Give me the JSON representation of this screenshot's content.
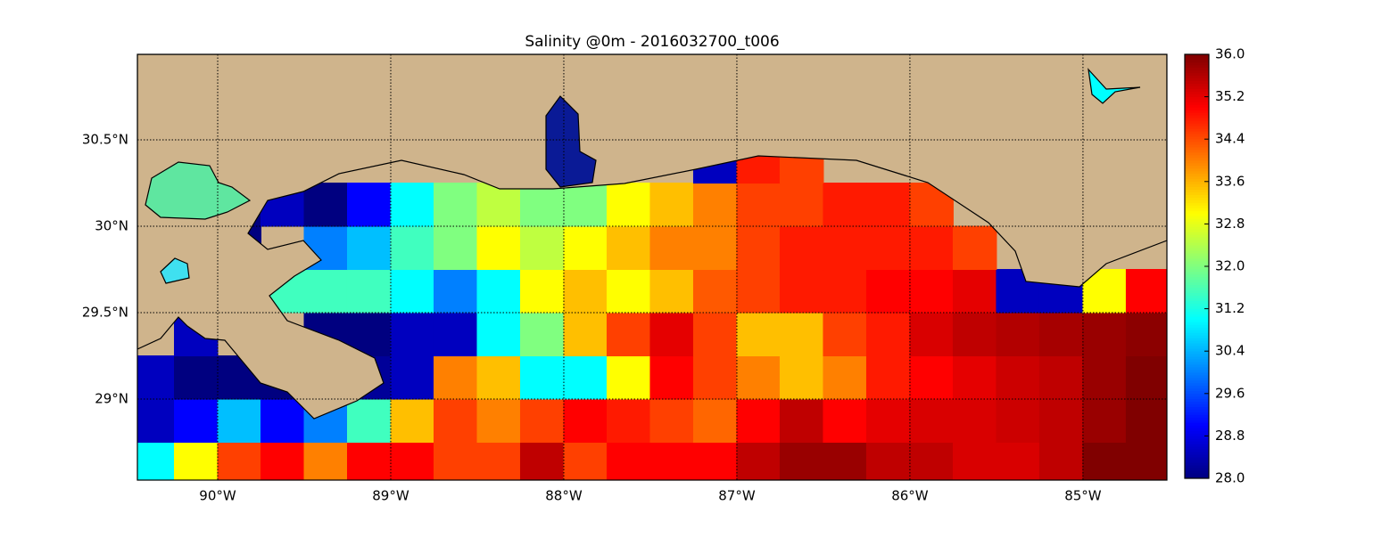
{
  "chart_data": {
    "type": "heatmap",
    "title": "Salinity @0m - 2016032700_t006",
    "colormap": "jet",
    "land_color": "#cfb48c",
    "grid": true,
    "xlim": [
      -90.464,
      -84.515
    ],
    "ylim": [
      28.531,
      30.995
    ],
    "xticks": [
      {
        "value": -90,
        "label": "90°W"
      },
      {
        "value": -89,
        "label": "89°W"
      },
      {
        "value": -88,
        "label": "88°W"
      },
      {
        "value": -87,
        "label": "87°W"
      },
      {
        "value": -86,
        "label": "86°W"
      },
      {
        "value": -85,
        "label": "85°W"
      }
    ],
    "yticks": [
      {
        "value": 29,
        "label": "29°N"
      },
      {
        "value": 29.5,
        "label": "29.5°N"
      },
      {
        "value": 30,
        "label": "30°N"
      },
      {
        "value": 30.5,
        "label": "30.5°N"
      }
    ],
    "clim": [
      28,
      36
    ],
    "cticks": [
      {
        "value": 28,
        "label": "28.0"
      },
      {
        "value": 28.8,
        "label": "28.8"
      },
      {
        "value": 29.6,
        "label": "29.6"
      },
      {
        "value": 30.4,
        "label": "30.4"
      },
      {
        "value": 31.2,
        "label": "31.2"
      },
      {
        "value": 32,
        "label": "32.0"
      },
      {
        "value": 32.8,
        "label": "32.8"
      },
      {
        "value": 33.6,
        "label": "33.6"
      },
      {
        "value": 34.4,
        "label": "34.4"
      },
      {
        "value": 35.2,
        "label": "35.2"
      },
      {
        "value": 36,
        "label": "36.0"
      }
    ],
    "x": [
      -90.375,
      -90.125,
      -89.875,
      -89.625,
      -89.375,
      -89.125,
      -88.875,
      -88.625,
      -88.375,
      -88.125,
      -87.875,
      -87.625,
      -87.375,
      -87.125,
      -86.875,
      -86.625,
      -86.375,
      -86.125,
      -85.875,
      -85.625,
      -85.375,
      -85.125,
      -84.875,
      -84.625
    ],
    "y": [
      28.625,
      28.875,
      29.125,
      29.375,
      29.625,
      29.875,
      30.125,
      30.375,
      30.625,
      30.875
    ],
    "values": [
      [
        31,
        33,
        34.5,
        35,
        34,
        35,
        35,
        34.5,
        34.5,
        35.5,
        34.5,
        35,
        35,
        35,
        35.5,
        35.8,
        35.8,
        35.5,
        35.5,
        35.3,
        35.3,
        35.5,
        36,
        36
      ],
      [
        28.5,
        29,
        30.5,
        29,
        30,
        31.5,
        33.5,
        34.5,
        34,
        34.5,
        35,
        34.8,
        34.5,
        34.2,
        35,
        35.5,
        35,
        35.2,
        35.3,
        35.3,
        35.4,
        35.5,
        35.8,
        36
      ],
      [
        28.5,
        28,
        28,
        28,
        28,
        28.2,
        28.5,
        34,
        33.5,
        31,
        31,
        33,
        35,
        34.5,
        34,
        33.5,
        34,
        34.8,
        35,
        35.2,
        35.4,
        35.5,
        35.8,
        36
      ],
      [
        null,
        28.5,
        null,
        null,
        28,
        28,
        28.5,
        28.5,
        31,
        32,
        33.5,
        34.5,
        35.2,
        34.5,
        33.5,
        33.5,
        34.5,
        34.8,
        35.3,
        35.5,
        35.6,
        35.7,
        35.8,
        35.9
      ],
      [
        null,
        null,
        null,
        31.5,
        31.5,
        31.5,
        31,
        30,
        31,
        33,
        33.5,
        33,
        33.5,
        34.3,
        34.5,
        34.8,
        34.8,
        35,
        35,
        35.2,
        28.5,
        28.5,
        33,
        35
      ],
      [
        null,
        null,
        28,
        null,
        30,
        30.5,
        31.5,
        32,
        33,
        32.5,
        33,
        33.5,
        34,
        34,
        34.5,
        34.8,
        34.8,
        34.8,
        34.8,
        34.5,
        null,
        null,
        null,
        null
      ],
      [
        null,
        31.5,
        28,
        28.5,
        28,
        29,
        31,
        32,
        32.5,
        32,
        32,
        33,
        33.5,
        34,
        34.5,
        34.5,
        34.8,
        34.8,
        34.5,
        null,
        null,
        null,
        null,
        null
      ],
      [
        null,
        null,
        null,
        null,
        null,
        null,
        null,
        null,
        null,
        28,
        null,
        null,
        null,
        28.5,
        34.8,
        34.5,
        null,
        null,
        null,
        null,
        null,
        null,
        null,
        null
      ],
      [
        null,
        null,
        null,
        null,
        null,
        null,
        null,
        null,
        null,
        28,
        null,
        null,
        null,
        null,
        null,
        null,
        null,
        null,
        null,
        null,
        null,
        null,
        null,
        null
      ],
      [
        null,
        null,
        null,
        null,
        null,
        null,
        null,
        null,
        null,
        null,
        null,
        null,
        null,
        null,
        null,
        null,
        null,
        null,
        null,
        null,
        null,
        null,
        null,
        null
      ]
    ]
  }
}
